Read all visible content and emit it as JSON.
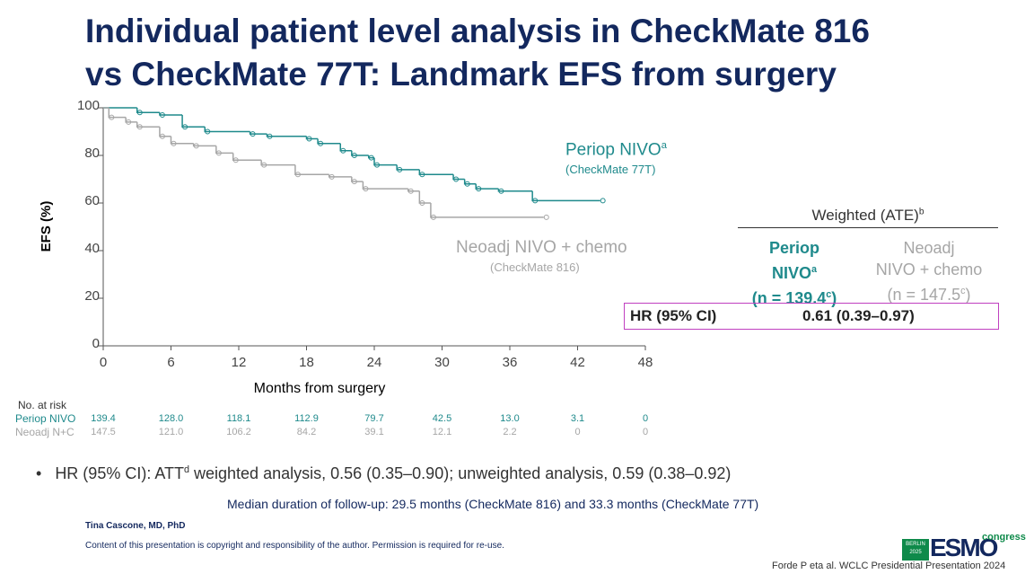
{
  "title_lines": [
    "Individual patient level analysis in CheckMate 816",
    "vs CheckMate 77T: Landmark EFS from surgery"
  ],
  "chart_data": {
    "type": "line",
    "xlabel": "Months from surgery",
    "ylabel": "EFS (%)",
    "xlim": [
      0,
      48
    ],
    "xticks": [
      0,
      6,
      12,
      18,
      24,
      30,
      36,
      42,
      48
    ],
    "ylim": [
      0,
      100
    ],
    "yticks": [
      0,
      20,
      40,
      60,
      80,
      100
    ],
    "series": [
      {
        "name": "Periop NIVO",
        "name_sup": "a",
        "subtitle": "(CheckMate 77T)",
        "color": "#1f8a8c",
        "x": [
          0,
          3,
          5,
          7,
          9,
          13,
          14.5,
          18,
          19,
          21,
          22,
          23.5,
          24,
          26,
          28,
          31,
          32,
          33,
          35,
          38,
          44
        ],
        "values": [
          100,
          98,
          97,
          92,
          90,
          89,
          88,
          87,
          85,
          82,
          80,
          79,
          76,
          74,
          72,
          70,
          68,
          66,
          65,
          61,
          61
        ]
      },
      {
        "name": "Neoadj NIVO + chemo",
        "subtitle": "(CheckMate 816)",
        "color": "#a6a6a6",
        "x": [
          0,
          0.5,
          2,
          3,
          5,
          6,
          8,
          10,
          11.5,
          14,
          17,
          20,
          22,
          23,
          27,
          28,
          29,
          39
        ],
        "values": [
          100,
          96,
          94,
          92,
          88,
          85,
          84,
          81,
          78,
          76,
          72,
          71,
          69,
          66,
          65,
          60,
          54,
          54
        ]
      }
    ]
  },
  "risk_table": {
    "heading": "No. at risk",
    "rows": [
      {
        "label": "Periop NIVO",
        "values": [
          "139.4",
          "128.0",
          "118.1",
          "112.9",
          "79.7",
          "42.5",
          "13.0",
          "3.1",
          "0"
        ]
      },
      {
        "label": "Neoadj N+C",
        "values": [
          "147.5",
          "121.0",
          "106.2",
          "84.2",
          "39.1",
          "12.1",
          "2.2",
          "0",
          "0"
        ]
      }
    ]
  },
  "hr_table": {
    "header": "Weighted (ATE)",
    "header_sup": "b",
    "columns": [
      {
        "lines": [
          "Periop",
          "NIVO"
        ],
        "sup": "a",
        "n": "(n = 139.4",
        "n_sup": "c",
        "n_close": ")"
      },
      {
        "lines": [
          "Neoadj",
          "NIVO + chemo"
        ],
        "n": "(n = 147.5",
        "n_sup": "c",
        "n_close": ")"
      }
    ],
    "row_label": "HR (95% CI)",
    "row_value": "0.61 (0.39–0.97)"
  },
  "bullet": {
    "before": "HR (95% CI): ATT",
    "sup": "d",
    "after": " weighted analysis, 0.56 (0.35–0.90); unweighted analysis, 0.59 (0.38–0.92)"
  },
  "median": "Median duration of follow-up: 29.5 months (CheckMate 816) and 33.3 months (CheckMate 77T)",
  "author": "Tina Cascone, MD, PhD",
  "copyright": "Content of this presentation is copyright and responsibility of the author. Permission is required for re-use.",
  "citation": "Forde P eta al. WCLC Presidential Presentation 2024",
  "logo": {
    "city": "BERLIN",
    "year": "2025",
    "brand": "ESMO",
    "word": "congress"
  }
}
